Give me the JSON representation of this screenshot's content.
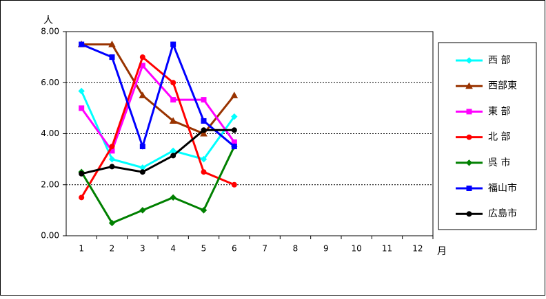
{
  "chart_data": {
    "type": "line",
    "y_label": "人",
    "x_label": "月",
    "categories": [
      "1",
      "2",
      "3",
      "4",
      "5",
      "6",
      "7",
      "8",
      "9",
      "10",
      "11",
      "12"
    ],
    "ylim": [
      0,
      8
    ],
    "yticks": [
      {
        "value": 0,
        "label": "0.00"
      },
      {
        "value": 2,
        "label": "2.00"
      },
      {
        "value": 4,
        "label": "4.00"
      },
      {
        "value": 6,
        "label": "6.00"
      },
      {
        "value": 8,
        "label": "8.00"
      }
    ],
    "grid": true,
    "legend": "right",
    "series": [
      {
        "name": "西 部",
        "color": "#00ffff",
        "marker": "diamond",
        "values": [
          5.67,
          3.0,
          2.67,
          3.33,
          3.0,
          4.67,
          null,
          null,
          null,
          null,
          null,
          null
        ]
      },
      {
        "name": "西部東",
        "color": "#993300",
        "marker": "triangle",
        "values": [
          7.5,
          7.5,
          5.5,
          4.5,
          4.0,
          5.5,
          null,
          null,
          null,
          null,
          null,
          null
        ]
      },
      {
        "name": "東 部",
        "color": "#ff00ff",
        "marker": "square",
        "values": [
          5.0,
          3.33,
          6.67,
          5.33,
          5.33,
          3.67,
          null,
          null,
          null,
          null,
          null,
          null
        ]
      },
      {
        "name": "北 部",
        "color": "#ff0000",
        "marker": "circle",
        "values": [
          1.5,
          3.5,
          7.0,
          6.0,
          2.5,
          2.0,
          null,
          null,
          null,
          null,
          null,
          null
        ]
      },
      {
        "name": "呉 市",
        "color": "#008000",
        "marker": "diamond",
        "values": [
          2.5,
          0.5,
          1.0,
          1.5,
          1.0,
          3.5,
          null,
          null,
          null,
          null,
          null,
          null
        ]
      },
      {
        "name": "福山市",
        "color": "#0000ff",
        "marker": "square",
        "values": [
          7.5,
          7.0,
          3.5,
          7.5,
          4.5,
          3.5,
          null,
          null,
          null,
          null,
          null,
          null
        ]
      },
      {
        "name": "広島市",
        "color": "#000000",
        "marker": "circle",
        "values": [
          2.43,
          2.71,
          2.5,
          3.14,
          4.14,
          4.14,
          null,
          null,
          null,
          null,
          null,
          null
        ]
      }
    ]
  }
}
